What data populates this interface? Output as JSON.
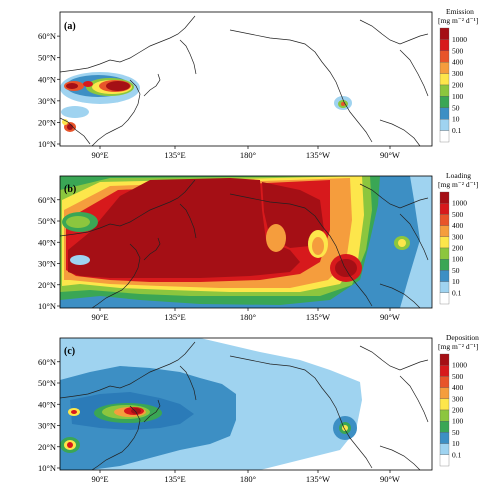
{
  "panels": [
    {
      "id": "a",
      "label": "(a)",
      "legend_title": "Emission",
      "legend_unit": "[mg m⁻² d⁻¹]"
    },
    {
      "id": "b",
      "label": "(b)",
      "legend_title": "Loading",
      "legend_unit": "[mg m⁻² d⁻¹]"
    },
    {
      "id": "c",
      "label": "(c)",
      "legend_title": "Deposition",
      "legend_unit": "[mg m⁻² d⁻¹]"
    }
  ],
  "lat_labels": [
    "60°N",
    "50°N",
    "40°N",
    "30°N",
    "20°N",
    "10°N"
  ],
  "lon_labels": [
    "90°E",
    "135°E",
    "180°",
    "135°W",
    "90°W"
  ],
  "legend_levels": [
    "1000",
    "500",
    "400",
    "300",
    "200",
    "100",
    "50",
    "10",
    "0.1"
  ],
  "legend_colors": [
    "#a50f15",
    "#d7191c",
    "#e8542a",
    "#f59d3d",
    "#fde64b",
    "#8cc63e",
    "#3aa655",
    "#3d8fc4",
    "#9fd3f0",
    "#ffffff"
  ]
}
